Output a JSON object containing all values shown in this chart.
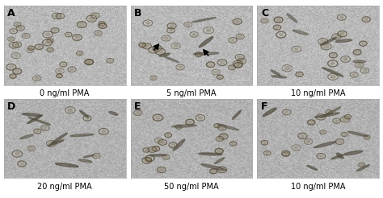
{
  "panels": [
    {
      "label": "A",
      "caption": "0 ng/ml PMA",
      "row": 0,
      "col": 0
    },
    {
      "label": "B",
      "caption": "5 ng/ml PMA",
      "row": 0,
      "col": 1
    },
    {
      "label": "C",
      "caption": "10 ng/ml PMA",
      "row": 0,
      "col": 2
    },
    {
      "label": "D",
      "caption": "20 ng/ml PMA",
      "row": 1,
      "col": 0
    },
    {
      "label": "E",
      "caption": "50 ng/ml PMA",
      "row": 1,
      "col": 1
    },
    {
      "label": "F",
      "caption": "10 ng/ml PMA",
      "row": 1,
      "col": 2
    }
  ],
  "bg_color": "#c8c8c8",
  "label_color": "#000000",
  "caption_color": "#000000",
  "border_color": "#ffffff",
  "label_fontsize": 9,
  "caption_fontsize": 7,
  "fig_bg": "#ffffff",
  "panel_bg_top": "#c0c0c0",
  "panel_bg_bot": "#b8b8b8"
}
